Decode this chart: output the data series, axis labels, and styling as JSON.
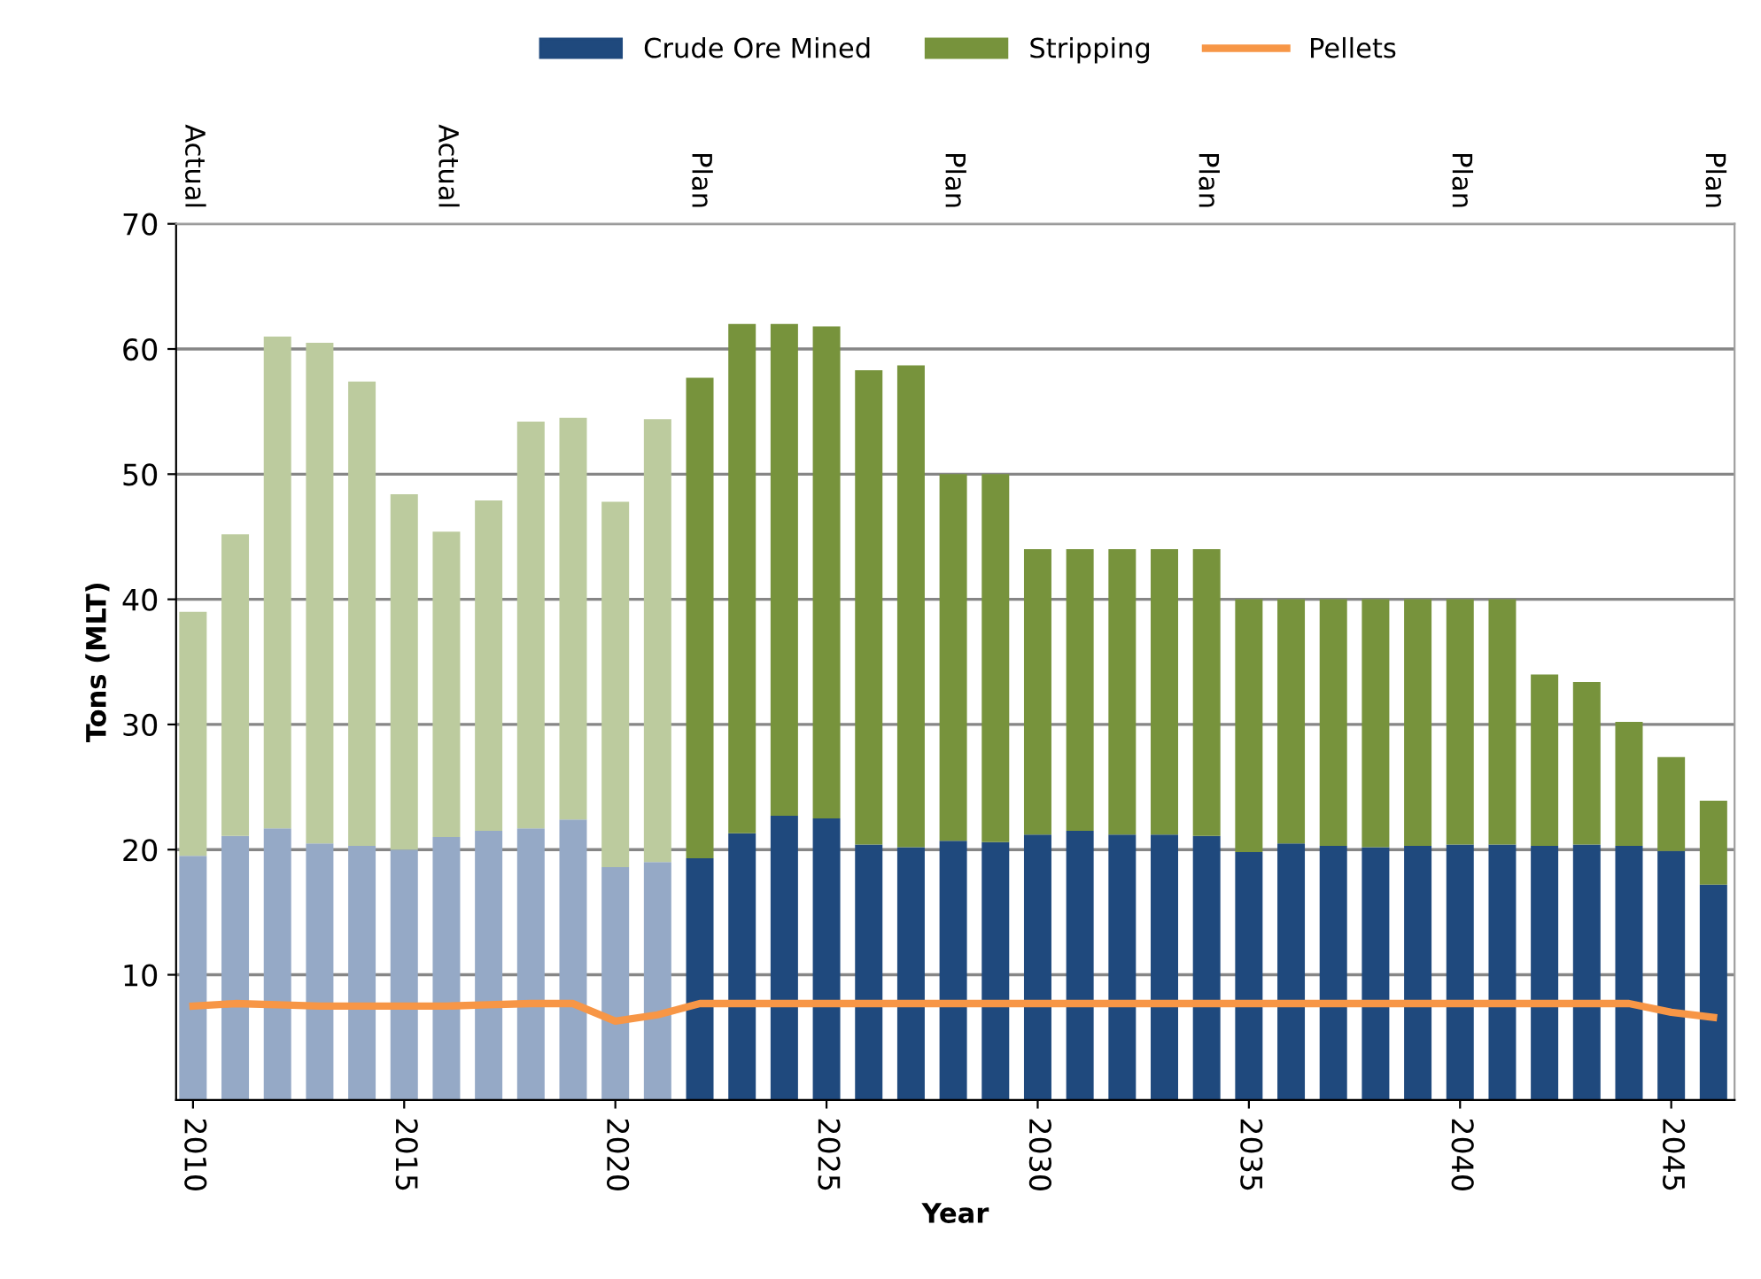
{
  "chart_data": {
    "type": "bar",
    "stacked": true,
    "xlabel": "Year",
    "ylabel": "Tons (MLT)",
    "x": [
      2010,
      2011,
      2012,
      2013,
      2014,
      2015,
      2016,
      2017,
      2018,
      2019,
      2020,
      2021,
      2022,
      2023,
      2024,
      2025,
      2026,
      2027,
      2028,
      2029,
      2030,
      2031,
      2032,
      2033,
      2034,
      2035,
      2036,
      2037,
      2038,
      2039,
      2040,
      2041,
      2042,
      2043,
      2044,
      2045,
      2046
    ],
    "series": [
      {
        "name": "Crude Ore Mined",
        "color": "#1f497d",
        "colors": [
          "#95a9c6",
          "#95a9c6",
          "#95a9c6",
          "#95a9c6",
          "#95a9c6",
          "#95a9c6",
          "#95a9c6",
          "#95a9c6",
          "#95a9c6",
          "#95a9c6",
          "#95a9c6",
          "#95a9c6",
          "#1f497d",
          "#1f497d",
          "#1f497d",
          "#1f497d",
          "#1f497d",
          "#1f497d",
          "#1f497d",
          "#1f497d",
          "#1f497d",
          "#1f497d",
          "#1f497d",
          "#1f497d",
          "#1f497d",
          "#1f497d",
          "#1f497d",
          "#1f497d",
          "#1f497d",
          "#1f497d",
          "#1f497d",
          "#1f497d",
          "#1f497d",
          "#1f497d",
          "#1f497d",
          "#1f497d",
          "#1f497d"
        ],
        "values": [
          19.5,
          21.1,
          21.7,
          20.5,
          20.3,
          20.0,
          21.0,
          21.5,
          21.7,
          22.4,
          18.6,
          19.0,
          19.3,
          21.3,
          22.7,
          22.5,
          20.4,
          20.2,
          20.7,
          20.6,
          21.2,
          21.5,
          21.2,
          21.2,
          21.1,
          19.8,
          20.5,
          20.3,
          20.2,
          20.3,
          20.4,
          20.4,
          20.3,
          20.4,
          20.3,
          19.9,
          17.2
        ]
      },
      {
        "name": "Stripping",
        "color": "#77933c",
        "colors": [
          "#bccb9e",
          "#bccb9e",
          "#bccb9e",
          "#bccb9e",
          "#bccb9e",
          "#bccb9e",
          "#bccb9e",
          "#bccb9e",
          "#bccb9e",
          "#bccb9e",
          "#bccb9e",
          "#bccb9e",
          "#77933c",
          "#77933c",
          "#77933c",
          "#77933c",
          "#77933c",
          "#77933c",
          "#77933c",
          "#77933c",
          "#77933c",
          "#77933c",
          "#77933c",
          "#77933c",
          "#77933c",
          "#77933c",
          "#77933c",
          "#77933c",
          "#77933c",
          "#77933c",
          "#77933c",
          "#77933c",
          "#77933c",
          "#77933c",
          "#77933c",
          "#77933c",
          "#77933c"
        ],
        "values": [
          19.5,
          24.1,
          39.3,
          40.0,
          37.1,
          28.4,
          24.4,
          26.4,
          32.5,
          32.1,
          29.2,
          35.4,
          38.4,
          40.7,
          39.3,
          39.3,
          37.9,
          38.5,
          29.3,
          29.4,
          22.8,
          22.5,
          22.8,
          22.8,
          22.9,
          20.2,
          19.5,
          19.7,
          19.8,
          19.7,
          19.6,
          19.6,
          13.7,
          13.0,
          9.9,
          7.5,
          6.7
        ]
      },
      {
        "name": "Pellets",
        "type": "line",
        "color": "#f79646",
        "values": [
          7.5,
          7.7,
          7.6,
          7.5,
          7.5,
          7.5,
          7.5,
          7.6,
          7.7,
          7.7,
          6.3,
          6.8,
          7.7,
          7.7,
          7.7,
          7.7,
          7.7,
          7.7,
          7.7,
          7.7,
          7.7,
          7.7,
          7.7,
          7.7,
          7.7,
          7.7,
          7.7,
          7.7,
          7.7,
          7.7,
          7.7,
          7.7,
          7.7,
          7.7,
          7.7,
          7.0,
          6.6
        ]
      }
    ],
    "xlim": [
      2009.6,
      2046.5
    ],
    "xticks": [
      2010,
      2015,
      2020,
      2025,
      2030,
      2035,
      2040,
      2045
    ],
    "annotations": [
      "Actual",
      "Actual",
      "Plan",
      "Plan",
      "Plan",
      "Plan",
      "Plan"
    ],
    "ylim": [
      0,
      70
    ],
    "yticks": [
      10,
      20,
      30,
      40,
      50,
      60,
      70
    ],
    "grid": "y",
    "legend": "top",
    "line_style": "solid",
    "marker": "none"
  }
}
